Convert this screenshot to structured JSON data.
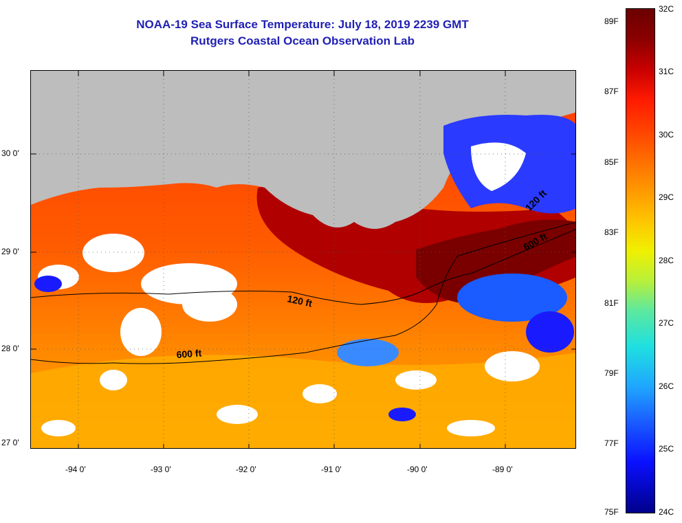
{
  "title_line1": "NOAA-19 Sea Surface Temperature:  July 18, 2019 2239 GMT",
  "title_line2": "Rutgers Coastal Ocean Observation Lab",
  "lon_labels": [
    "-94 0'",
    "-93 0'",
    "-92 0'",
    "-91 0'",
    "-90 0'",
    "-89 0'"
  ],
  "lat_labels": [
    "30 0'",
    "29 0'",
    "28 0'",
    "27 0'"
  ],
  "contours": {
    "c120": "120 ft",
    "c600": "600 ft",
    "c120b": "120 ft",
    "c600b": "600 ft"
  },
  "colorbar": {
    "celsius": [
      "32C",
      "31C",
      "30C",
      "29C",
      "28C",
      "27C",
      "26C",
      "25C",
      "24C"
    ],
    "fahrenheit": [
      "89F",
      "87F",
      "85F",
      "83F",
      "81F",
      "79F",
      "77F",
      "75F"
    ]
  },
  "colors": {
    "land": "#bdbdbd",
    "title": "#1f1fb4",
    "warm": "#ff5a00",
    "hot": "#8b0000",
    "cold": "#1a1aff"
  }
}
